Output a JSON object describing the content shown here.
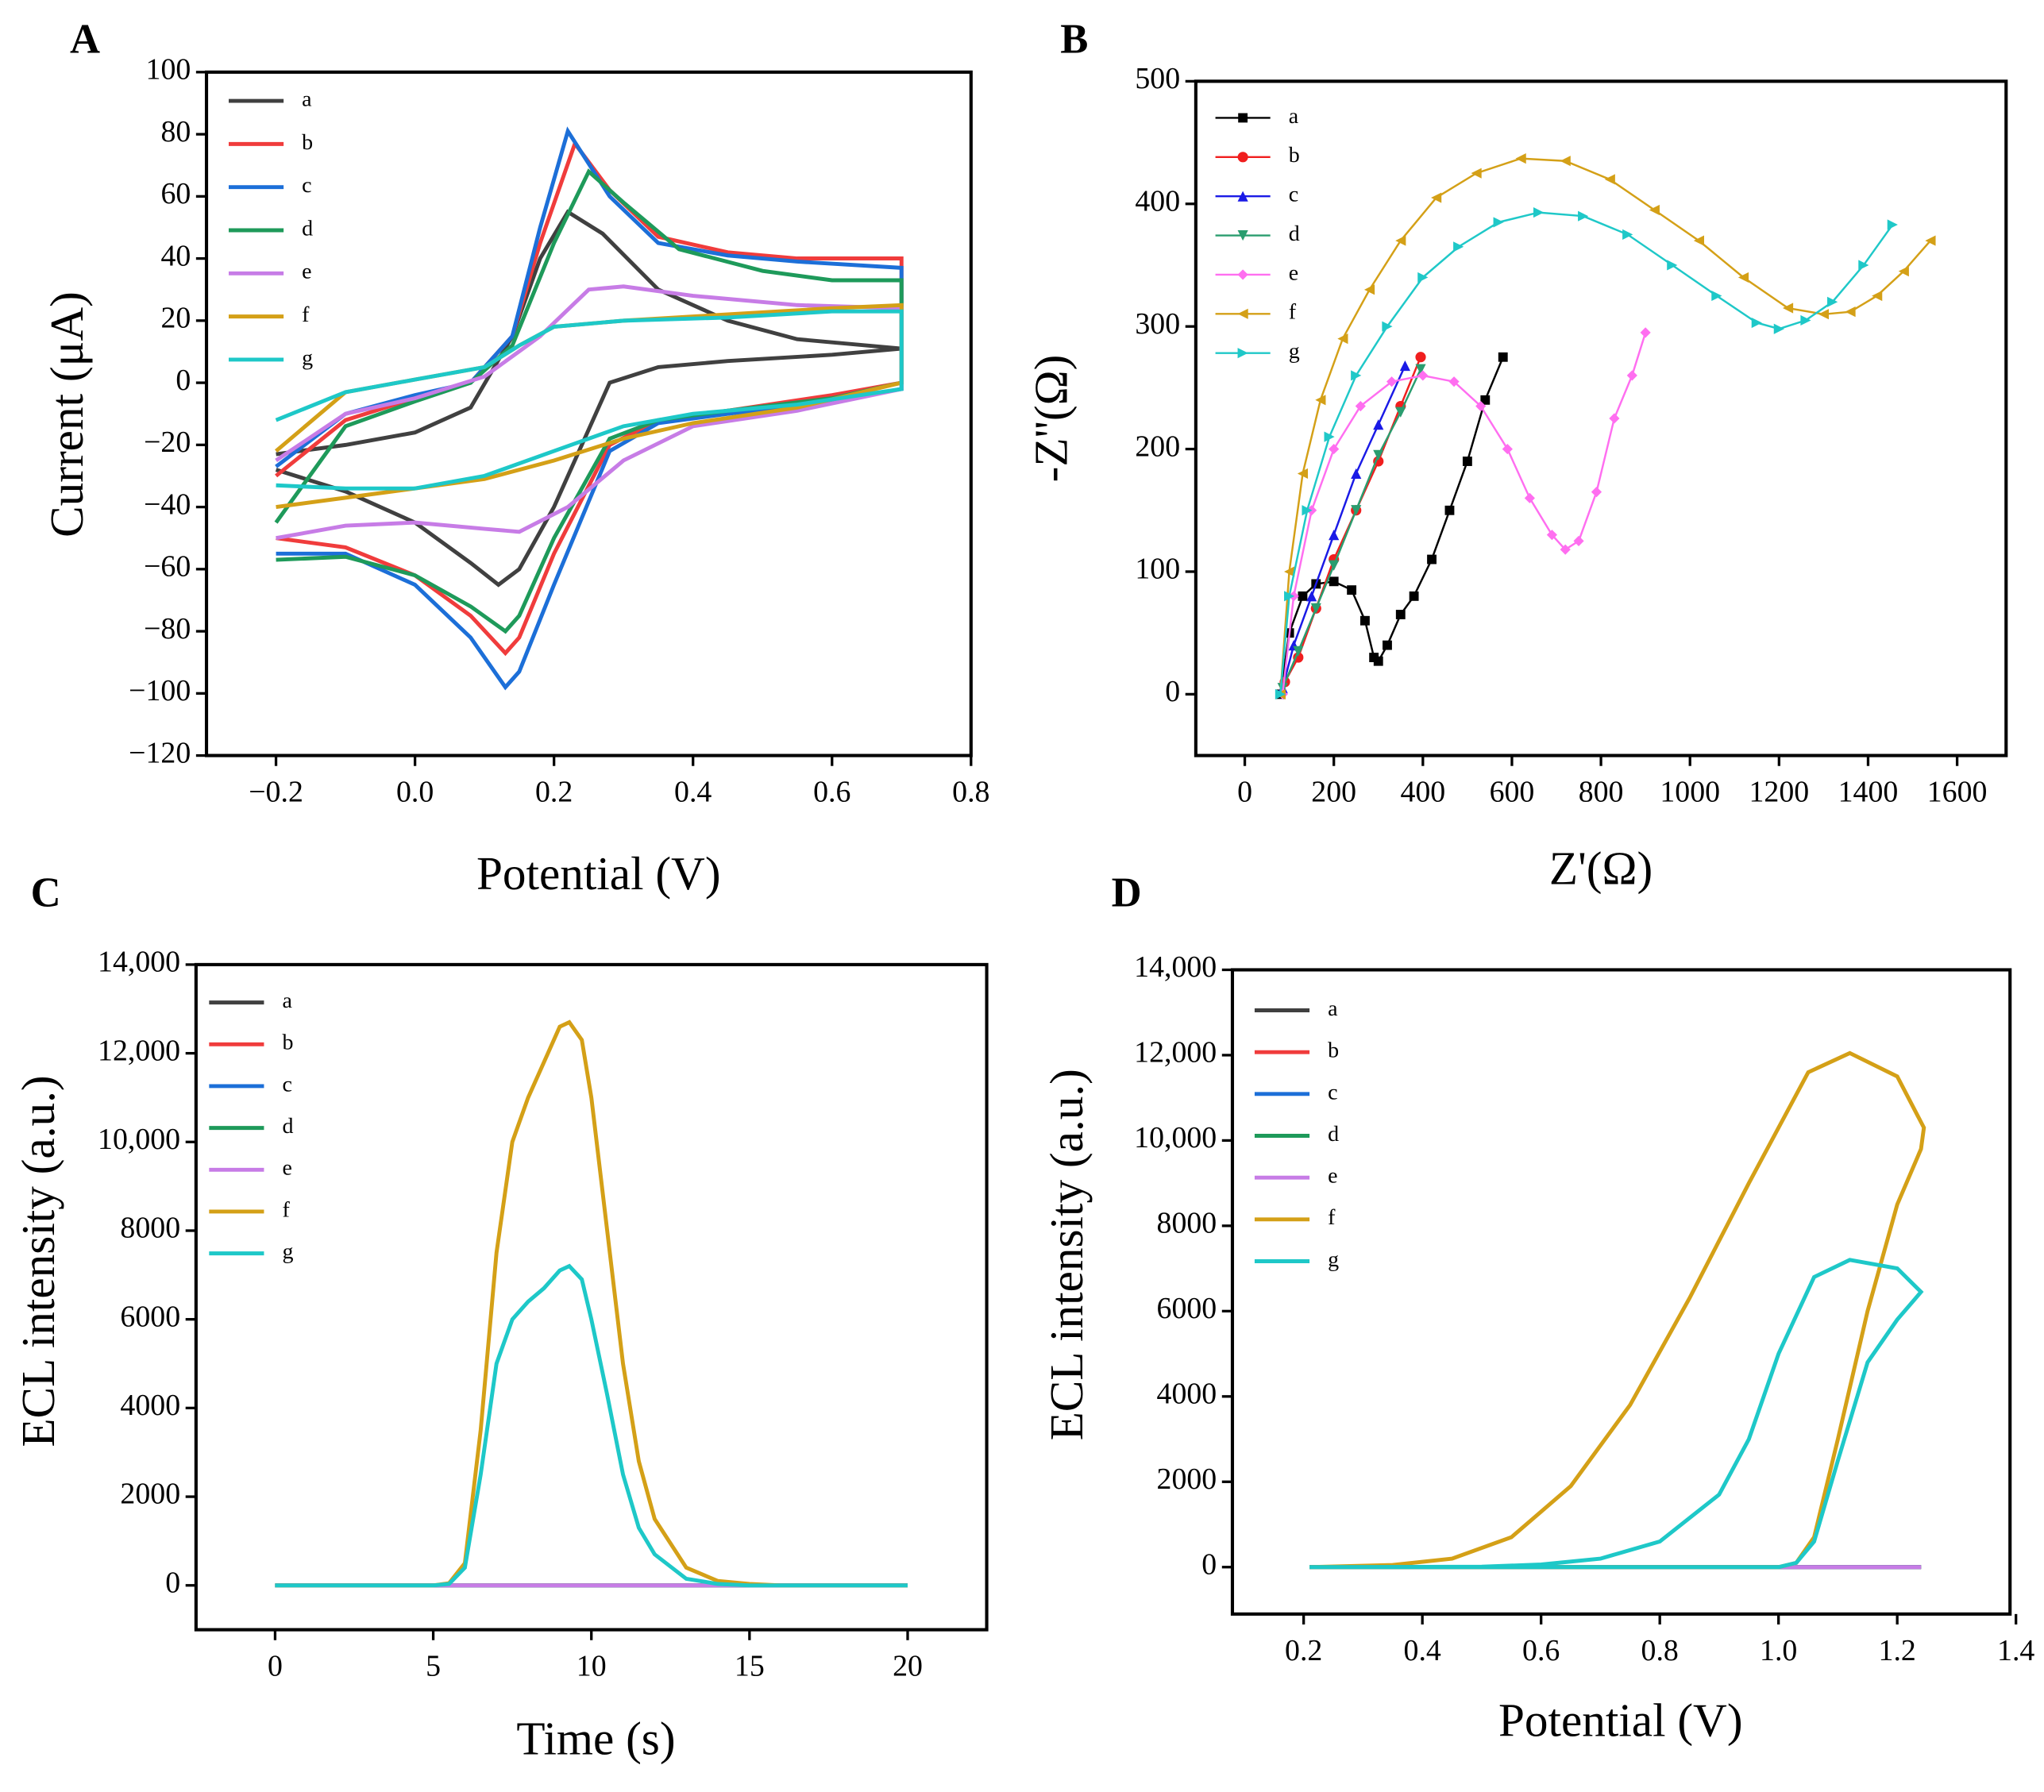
{
  "chart_data": [
    {
      "type": "line",
      "panel_label": "A",
      "xlabel": "Potential (V)",
      "ylabel": "Current (μA)",
      "xlim": [
        -0.3,
        0.8
      ],
      "ylim": [
        -120,
        100
      ],
      "xticks": [
        {
          "value": -0.2,
          "label": "−0.2"
        },
        {
          "value": 0,
          "label": "0.0"
        },
        0.2,
        0.4,
        0.6,
        0.8
      ],
      "yticks": [
        {
          "value": -120,
          "label": "−120"
        },
        {
          "value": -100,
          "label": "−100"
        },
        {
          "value": -80,
          "label": "−80"
        },
        {
          "value": -60,
          "label": "−60"
        },
        {
          "value": -40,
          "label": "−40"
        },
        {
          "value": -20,
          "label": "−20"
        },
        0,
        20,
        40,
        60,
        80,
        100
      ],
      "series": [
        {
          "name": "a",
          "color": "#404040",
          "x": [
            -0.2,
            -0.1,
            0,
            0.08,
            0.14,
            0.18,
            0.22,
            0.27,
            0.35,
            0.45,
            0.55,
            0.7,
            0.6,
            0.45,
            0.35,
            0.28,
            0.2,
            0.15,
            0.12,
            0.08,
            0,
            -0.1,
            -0.2
          ],
          "y": [
            -23,
            -20,
            -16,
            -8,
            15,
            40,
            55,
            48,
            30,
            20,
            14,
            11,
            9,
            7,
            5,
            0,
            -40,
            -60,
            -65,
            -58,
            -45,
            -35,
            -28
          ]
        },
        {
          "name": "b",
          "color": "#f03c3c",
          "x": [
            -0.2,
            -0.1,
            0,
            0.08,
            0.14,
            0.18,
            0.23,
            0.28,
            0.35,
            0.45,
            0.55,
            0.7,
            0.7,
            0.6,
            0.45,
            0.35,
            0.28,
            0.2,
            0.15,
            0.13,
            0.08,
            0,
            -0.1,
            -0.2
          ],
          "y": [
            -30,
            -12,
            -5,
            0,
            15,
            45,
            77,
            62,
            47,
            42,
            40,
            40,
            0,
            -4,
            -9,
            -12,
            -20,
            -55,
            -82,
            -87,
            -75,
            -62,
            -53,
            -50
          ]
        },
        {
          "name": "c",
          "color": "#1c6fd8",
          "x": [
            -0.2,
            -0.1,
            0,
            0.08,
            0.14,
            0.18,
            0.22,
            0.28,
            0.35,
            0.45,
            0.55,
            0.7,
            0.7,
            0.6,
            0.45,
            0.35,
            0.28,
            0.2,
            0.15,
            0.13,
            0.08,
            0,
            -0.1,
            -0.2
          ],
          "y": [
            -27,
            -10,
            -4,
            0,
            15,
            50,
            81,
            60,
            45,
            41,
            39,
            37,
            -2,
            -6,
            -10,
            -13,
            -22,
            -65,
            -93,
            -98,
            -82,
            -65,
            -55,
            -55
          ]
        },
        {
          "name": "d",
          "color": "#1e9a5a",
          "x": [
            -0.2,
            -0.1,
            0,
            0.08,
            0.14,
            0.2,
            0.25,
            0.3,
            0.38,
            0.5,
            0.6,
            0.7,
            0.7,
            0.6,
            0.45,
            0.35,
            0.28,
            0.2,
            0.15,
            0.13,
            0.08,
            0,
            -0.1,
            -0.2
          ],
          "y": [
            -45,
            -14,
            -6,
            0,
            12,
            45,
            68,
            58,
            43,
            36,
            33,
            33,
            0,
            -5,
            -9,
            -12,
            -18,
            -50,
            -75,
            -80,
            -72,
            -62,
            -56,
            -57
          ]
        },
        {
          "name": "e",
          "color": "#c77ce6",
          "x": [
            -0.2,
            -0.1,
            0,
            0.1,
            0.18,
            0.25,
            0.3,
            0.4,
            0.55,
            0.7,
            0.7,
            0.55,
            0.4,
            0.3,
            0.22,
            0.15,
            0.1,
            0,
            -0.1,
            -0.2
          ],
          "y": [
            -25,
            -10,
            -5,
            2,
            15,
            30,
            31,
            28,
            25,
            24,
            -2,
            -9,
            -14,
            -25,
            -40,
            -48,
            -47,
            -45,
            -46,
            -50
          ]
        },
        {
          "name": "f",
          "color": "#d4a017",
          "x": [
            -0.2,
            -0.1,
            0,
            0.1,
            0.15,
            0.2,
            0.3,
            0.45,
            0.6,
            0.7,
            0.7,
            0.55,
            0.4,
            0.3,
            0.2,
            0.1,
            0,
            -0.1,
            -0.2
          ],
          "y": [
            -22,
            -3,
            1,
            5,
            12,
            18,
            20,
            22,
            24,
            25,
            0,
            -8,
            -13,
            -18,
            -25,
            -31,
            -34,
            -37,
            -40
          ]
        },
        {
          "name": "g",
          "color": "#1ec8c8",
          "x": [
            -0.2,
            -0.1,
            0,
            0.1,
            0.15,
            0.2,
            0.3,
            0.45,
            0.6,
            0.7,
            0.7,
            0.55,
            0.4,
            0.3,
            0.2,
            0.1,
            0,
            -0.1,
            -0.2
          ],
          "y": [
            -12,
            -3,
            1,
            5,
            12,
            18,
            20,
            21,
            23,
            23,
            -2,
            -7,
            -10,
            -14,
            -22,
            -30,
            -34,
            -34,
            -33
          ]
        }
      ]
    },
    {
      "type": "line",
      "panel_label": "B",
      "xlabel": "Z'(Ω)",
      "ylabel": "-Z''(Ω)",
      "xlim": [
        -110,
        1710
      ],
      "ylim": [
        -50,
        500
      ],
      "xticks": [
        0,
        200,
        400,
        600,
        800,
        1000,
        1200,
        1400,
        1600
      ],
      "yticks": [
        0,
        100,
        200,
        300,
        400,
        500
      ],
      "series": [
        {
          "name": "a",
          "color": "#000000",
          "marker": "square",
          "x": [
            80,
            100,
            130,
            160,
            200,
            240,
            270,
            290,
            300,
            320,
            350,
            380,
            420,
            460,
            500,
            540,
            580
          ],
          "y": [
            0,
            50,
            80,
            90,
            92,
            85,
            60,
            30,
            27,
            40,
            65,
            80,
            110,
            150,
            190,
            240,
            275
          ]
        },
        {
          "name": "b",
          "color": "#f01e1e",
          "marker": "circle",
          "x": [
            90,
            120,
            160,
            200,
            250,
            300,
            350,
            395
          ],
          "y": [
            10,
            30,
            70,
            110,
            150,
            190,
            235,
            275
          ]
        },
        {
          "name": "c",
          "color": "#1a1ae6",
          "marker": "triangle-up",
          "x": [
            85,
            110,
            150,
            200,
            250,
            300,
            360
          ],
          "y": [
            5,
            40,
            80,
            130,
            180,
            220,
            268
          ]
        },
        {
          "name": "d",
          "color": "#2a9d6f",
          "marker": "triangle-down",
          "x": [
            85,
            120,
            160,
            200,
            250,
            300,
            350,
            395
          ],
          "y": [
            5,
            35,
            70,
            105,
            150,
            195,
            230,
            265
          ]
        },
        {
          "name": "e",
          "color": "#ff6ef0",
          "marker": "diamond",
          "x": [
            85,
            110,
            150,
            200,
            260,
            330,
            400,
            470,
            530,
            590,
            640,
            690,
            720,
            750,
            790,
            830,
            870,
            900
          ],
          "y": [
            0,
            80,
            150,
            200,
            235,
            255,
            260,
            255,
            235,
            200,
            160,
            130,
            118,
            125,
            165,
            225,
            260,
            295
          ]
        },
        {
          "name": "f",
          "color": "#d4a017",
          "marker": "triangle-left",
          "x": [
            80,
            100,
            130,
            170,
            220,
            280,
            350,
            430,
            520,
            620,
            720,
            820,
            920,
            1020,
            1120,
            1220,
            1300,
            1360,
            1420,
            1480,
            1540
          ],
          "y": [
            0,
            100,
            180,
            240,
            290,
            330,
            370,
            405,
            425,
            437,
            435,
            420,
            395,
            370,
            340,
            315,
            310,
            312,
            325,
            345,
            370
          ]
        },
        {
          "name": "g",
          "color": "#1fc8c8",
          "marker": "triangle-right",
          "x": [
            80,
            100,
            140,
            190,
            250,
            320,
            400,
            480,
            570,
            660,
            760,
            860,
            960,
            1060,
            1150,
            1200,
            1260,
            1320,
            1390,
            1455
          ],
          "y": [
            0,
            80,
            150,
            210,
            260,
            300,
            340,
            365,
            385,
            393,
            390,
            375,
            350,
            325,
            303,
            298,
            305,
            320,
            350,
            383
          ]
        }
      ]
    },
    {
      "type": "line",
      "panel_label": "C",
      "xlabel": "Time (s)",
      "ylabel": "ECL intensity (a.u.)",
      "xlim": [
        -2.5,
        22.5
      ],
      "ylim": [
        -1000,
        14000
      ],
      "xticks": [
        0,
        5,
        10,
        15,
        20
      ],
      "yticks": [
        0,
        2000,
        4000,
        6000,
        8000,
        {
          "value": 10000,
          "label": "10,000"
        },
        {
          "value": 12000,
          "label": "12,000"
        },
        {
          "value": 14000,
          "label": "14,000"
        }
      ],
      "series": [
        {
          "name": "a",
          "color": "#404040",
          "x": [
            0,
            20
          ],
          "y": [
            0,
            0
          ]
        },
        {
          "name": "b",
          "color": "#f03c3c",
          "x": [
            0,
            20
          ],
          "y": [
            0,
            0
          ]
        },
        {
          "name": "c",
          "color": "#1c6fd8",
          "x": [
            0,
            20
          ],
          "y": [
            0,
            0
          ]
        },
        {
          "name": "d",
          "color": "#1e9a5a",
          "x": [
            0,
            20
          ],
          "y": [
            0,
            0
          ]
        },
        {
          "name": "e",
          "color": "#c77ce6",
          "x": [
            0,
            20
          ],
          "y": [
            0,
            0
          ]
        },
        {
          "name": "f",
          "color": "#d4a017",
          "x": [
            0,
            5,
            5.5,
            6,
            6.5,
            7,
            7.5,
            8,
            8.5,
            9,
            9.3,
            9.7,
            10,
            10.5,
            11,
            11.5,
            12,
            13,
            14,
            15,
            16,
            20
          ],
          "y": [
            0,
            0,
            50,
            500,
            3500,
            7500,
            10000,
            11000,
            11800,
            12600,
            12700,
            12300,
            11000,
            8000,
            5000,
            2800,
            1500,
            400,
            100,
            30,
            0,
            0
          ]
        },
        {
          "name": "g",
          "color": "#1ec8c8",
          "x": [
            0,
            5,
            5.5,
            6,
            6.5,
            7,
            7.5,
            8,
            8.5,
            9,
            9.3,
            9.7,
            10,
            10.5,
            11,
            11.5,
            12,
            13,
            14,
            15,
            20
          ],
          "y": [
            0,
            0,
            30,
            400,
            2500,
            5000,
            6000,
            6400,
            6700,
            7100,
            7200,
            6900,
            6000,
            4300,
            2500,
            1300,
            700,
            150,
            30,
            0,
            0
          ]
        }
      ]
    },
    {
      "type": "line",
      "panel_label": "D",
      "xlabel": "Potential (V)",
      "ylabel": "ECL intensity (a.u.)",
      "xlim": [
        0.08,
        1.39
      ],
      "ylim": [
        -1100,
        14000
      ],
      "xticks": [
        0.2,
        0.4,
        0.6,
        0.8,
        {
          "value": 1,
          "label": "1.0"
        },
        1.2,
        1.4
      ],
      "yticks": [
        0,
        2000,
        4000,
        6000,
        8000,
        {
          "value": 10000,
          "label": "10,000"
        },
        {
          "value": 12000,
          "label": "12,000"
        },
        {
          "value": 14000,
          "label": "14,000"
        }
      ],
      "series": [
        {
          "name": "a",
          "color": "#404040",
          "x": [
            0.21,
            1.24
          ],
          "y": [
            0,
            0
          ]
        },
        {
          "name": "b",
          "color": "#f03c3c",
          "x": [
            0.21,
            1.24
          ],
          "y": [
            0,
            0
          ]
        },
        {
          "name": "c",
          "color": "#1c6fd8",
          "x": [
            0.21,
            1.24
          ],
          "y": [
            0,
            0
          ]
        },
        {
          "name": "d",
          "color": "#1e9a5a",
          "x": [
            0.21,
            1.24
          ],
          "y": [
            0,
            0
          ]
        },
        {
          "name": "e",
          "color": "#c77ce6",
          "x": [
            0.21,
            1.24
          ],
          "y": [
            0,
            0
          ]
        },
        {
          "name": "f",
          "color": "#d4a017",
          "x": [
            0.21,
            0.5,
            0.9,
            1.0,
            1.03,
            1.06,
            1.1,
            1.15,
            1.2,
            1.24,
            1.245,
            1.2,
            1.12,
            1.05,
            0.95,
            0.85,
            0.75,
            0.65,
            0.55,
            0.45,
            0.35,
            0.21
          ],
          "y": [
            0,
            0,
            0,
            0,
            100,
            700,
            3000,
            6000,
            8500,
            9800,
            10300,
            11500,
            12050,
            11600,
            9000,
            6300,
            3800,
            1900,
            700,
            200,
            50,
            0
          ]
        },
        {
          "name": "g",
          "color": "#1ec8c8",
          "x": [
            0.21,
            0.5,
            0.9,
            1.0,
            1.03,
            1.06,
            1.1,
            1.15,
            1.2,
            1.24,
            1.2,
            1.12,
            1.06,
            1.0,
            0.95,
            0.9,
            0.8,
            0.7,
            0.6,
            0.5,
            0.21
          ],
          "y": [
            0,
            0,
            0,
            0,
            100,
            600,
            2500,
            4800,
            5800,
            6450,
            7000,
            7200,
            6800,
            5000,
            3000,
            1700,
            600,
            200,
            60,
            10,
            0
          ]
        }
      ]
    }
  ]
}
